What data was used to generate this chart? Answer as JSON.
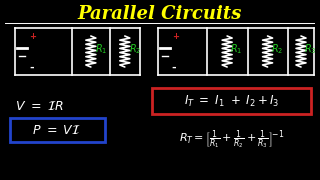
{
  "title": "Parallel Circuits",
  "title_color": "#FFFF00",
  "bg_color": "#000000",
  "white": "#FFFFFF",
  "green": "#22CC22",
  "red_plus": "#CC2222",
  "blue_box": "#2244CC",
  "red_box": "#CC2222",
  "lw": 1.2
}
